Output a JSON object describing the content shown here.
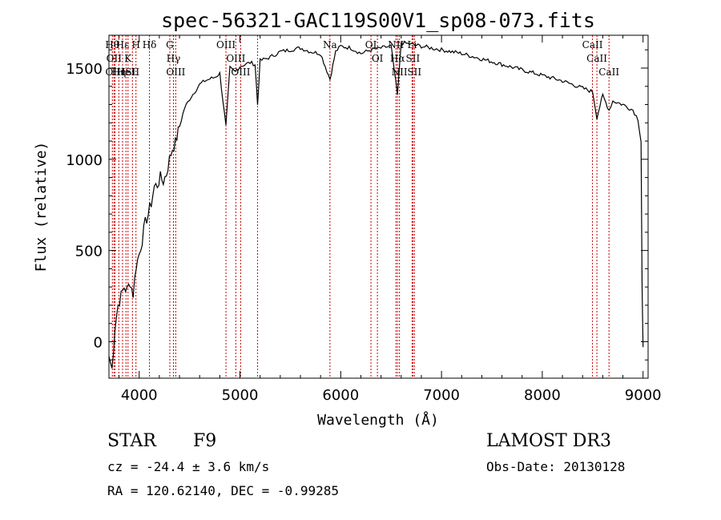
{
  "chart_data": {
    "type": "line",
    "title": "spec-56321-GAC119S00V1_sp08-073.fits",
    "xlabel": "Wavelength (Å)",
    "ylabel": "Flux (relative)",
    "xlim": [
      3700,
      9050
    ],
    "ylim": [
      -200,
      1680
    ],
    "xticks": [
      4000,
      5000,
      6000,
      7000,
      8000,
      9000
    ],
    "xtick_labels": [
      "4000",
      "5000",
      "6000",
      "7000",
      "8000",
      "9000"
    ],
    "yticks": [
      0,
      500,
      1000,
      1500
    ],
    "ytick_labels": [
      "0",
      "500",
      "1000",
      "1500"
    ],
    "line_color": "#000000",
    "marker_color": "#cc0000",
    "spectrum": {
      "x": [
        3700,
        3730,
        3760,
        3790,
        3820,
        3850,
        3880,
        3910,
        3940,
        3970,
        4000,
        4030,
        4060,
        4090,
        4120,
        4150,
        4180,
        4210,
        4240,
        4270,
        4300,
        4330,
        4360,
        4400,
        4450,
        4500,
        4550,
        4600,
        4650,
        4700,
        4750,
        4800,
        4861,
        4900,
        4950,
        5000,
        5050,
        5100,
        5150,
        5175,
        5200,
        5300,
        5400,
        5500,
        5600,
        5700,
        5800,
        5893,
        5950,
        6000,
        6100,
        6200,
        6300,
        6400,
        6500,
        6563,
        6600,
        6700,
        6800,
        6900,
        7000,
        7200,
        7400,
        7600,
        7800,
        8000,
        8200,
        8400,
        8500,
        8542,
        8600,
        8662,
        8700,
        8800,
        8900,
        8950,
        8980,
        8990,
        9000
      ],
      "y": [
        -80,
        -150,
        80,
        200,
        250,
        300,
        280,
        330,
        260,
        420,
        480,
        560,
        650,
        700,
        760,
        850,
        860,
        900,
        880,
        920,
        1000,
        1060,
        1090,
        1180,
        1280,
        1330,
        1370,
        1410,
        1430,
        1440,
        1450,
        1470,
        1180,
        1500,
        1480,
        1510,
        1520,
        1530,
        1520,
        1300,
        1540,
        1560,
        1590,
        1600,
        1610,
        1590,
        1580,
        1440,
        1590,
        1620,
        1610,
        1580,
        1600,
        1610,
        1620,
        1350,
        1640,
        1630,
        1620,
        1610,
        1600,
        1580,
        1550,
        1520,
        1490,
        1460,
        1430,
        1390,
        1370,
        1230,
        1350,
        1270,
        1320,
        1300,
        1270,
        1220,
        1100,
        300,
        -30
      ]
    },
    "lines": [
      {
        "wavelength": 3734,
        "labels": [
          "Hθ"
        ]
      },
      {
        "wavelength": 3750,
        "labels": [
          "OII"
        ]
      },
      {
        "wavelength": 3760,
        "labels": [
          "OIII"
        ]
      },
      {
        "wavelength": 3798,
        "labels": [
          "Hη"
        ]
      },
      {
        "wavelength": 3835,
        "labels": [
          "Hε"
        ]
      },
      {
        "wavelength": 3869,
        "labels": [
          "HeI"
        ]
      },
      {
        "wavelength": 3889,
        "labels": [
          "K"
        ]
      },
      {
        "wavelength": 3933,
        "labels": [
          "SII"
        ]
      },
      {
        "wavelength": 3968,
        "labels": [
          "H"
        ]
      },
      {
        "wavelength": 4102,
        "labels": [
          "Hδ"
        ]
      },
      {
        "wavelength": 4304,
        "labels": [
          "G"
        ]
      },
      {
        "wavelength": 4340,
        "labels": [
          "Hγ"
        ]
      },
      {
        "wavelength": 4363,
        "labels": [
          "OIII"
        ]
      },
      {
        "wavelength": 4861,
        "labels": [
          "OIII"
        ]
      },
      {
        "wavelength": 4959,
        "labels": [
          "OIII"
        ]
      },
      {
        "wavelength": 5007,
        "labels": [
          "OIII"
        ]
      },
      {
        "wavelength": 5175,
        "labels": []
      },
      {
        "wavelength": 5893,
        "labels": [
          "Na"
        ]
      },
      {
        "wavelength": 6300,
        "labels": [
          "OI"
        ]
      },
      {
        "wavelength": 6364,
        "labels": [
          "OI"
        ]
      },
      {
        "wavelength": 6548,
        "labels": [
          "NII"
        ]
      },
      {
        "wavelength": 6563,
        "labels": [
          "Hα"
        ]
      },
      {
        "wavelength": 6583,
        "labels": [
          "NII"
        ]
      },
      {
        "wavelength": 6708,
        "labels": [
          "Li"
        ]
      },
      {
        "wavelength": 6716,
        "labels": [
          "SII"
        ]
      },
      {
        "wavelength": 6731,
        "labels": [
          "SII"
        ]
      },
      {
        "wavelength": 8498,
        "labels": [
          "CaII"
        ]
      },
      {
        "wavelength": 8542,
        "labels": [
          "CaII"
        ]
      },
      {
        "wavelength": 8662,
        "labels": [
          "CaII"
        ]
      }
    ]
  },
  "info": {
    "object_type": "STAR",
    "subclass": "F9",
    "survey": "LAMOST DR3",
    "cz": "cz = -24.4 ± 3.6 km/s",
    "obs_date": "Obs-Date: 20130128",
    "coords": "RA = 120.62140, DEC =  -0.99285"
  }
}
